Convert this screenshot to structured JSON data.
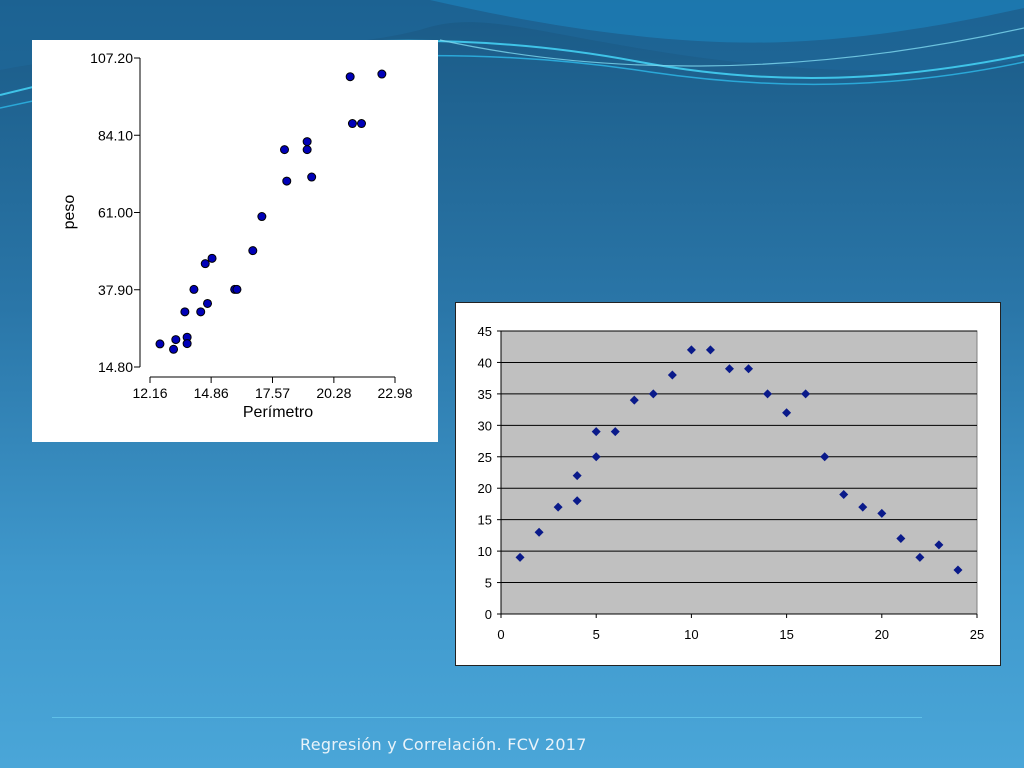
{
  "footer": {
    "text": "Regresión y Correlación. FCV 2017"
  },
  "colors": {
    "marker": "#0000b8",
    "marker2": "#0a1a8a",
    "plot_bg": "#c0c0c0"
  },
  "chart_data": [
    {
      "type": "scatter",
      "title": "",
      "xlabel": "Perímetro",
      "ylabel": "peso",
      "xlim": [
        12.16,
        22.98
      ],
      "ylim": [
        14.8,
        107.2
      ],
      "xticks": [
        "12.16",
        "14.86",
        "17.57",
        "20.28",
        "22.98"
      ],
      "yticks": [
        "14.80",
        "37.90",
        "61.00",
        "84.10",
        "107.20"
      ],
      "grid": false,
      "points": [
        {
          "x": 12.6,
          "y": 21.7
        },
        {
          "x": 13.2,
          "y": 20.1
        },
        {
          "x": 13.3,
          "y": 23.0
        },
        {
          "x": 13.7,
          "y": 31.3
        },
        {
          "x": 13.8,
          "y": 23.7
        },
        {
          "x": 13.8,
          "y": 21.8
        },
        {
          "x": 14.1,
          "y": 38.0
        },
        {
          "x": 14.4,
          "y": 31.3
        },
        {
          "x": 14.6,
          "y": 45.7
        },
        {
          "x": 14.7,
          "y": 33.8
        },
        {
          "x": 14.9,
          "y": 47.3
        },
        {
          "x": 15.9,
          "y": 38.0
        },
        {
          "x": 16.0,
          "y": 38.0
        },
        {
          "x": 16.7,
          "y": 49.6
        },
        {
          "x": 17.1,
          "y": 59.8
        },
        {
          "x": 18.1,
          "y": 79.8
        },
        {
          "x": 18.2,
          "y": 70.4
        },
        {
          "x": 19.1,
          "y": 82.2
        },
        {
          "x": 19.1,
          "y": 79.8
        },
        {
          "x": 19.3,
          "y": 71.6
        },
        {
          "x": 21.0,
          "y": 101.6
        },
        {
          "x": 21.1,
          "y": 87.6
        },
        {
          "x": 21.5,
          "y": 87.6
        },
        {
          "x": 22.4,
          "y": 102.4
        }
      ]
    },
    {
      "type": "scatter",
      "title": "",
      "xlabel": "",
      "ylabel": "",
      "xlim": [
        0,
        25
      ],
      "ylim": [
        0,
        45
      ],
      "xticks": [
        0,
        5,
        10,
        15,
        20,
        25
      ],
      "yticks": [
        0,
        5,
        10,
        15,
        20,
        25,
        30,
        35,
        40,
        45
      ],
      "grid": true,
      "marker": "diamond",
      "points": [
        {
          "x": 1,
          "y": 9
        },
        {
          "x": 2,
          "y": 13
        },
        {
          "x": 3,
          "y": 17
        },
        {
          "x": 4,
          "y": 22
        },
        {
          "x": 4,
          "y": 18
        },
        {
          "x": 5,
          "y": 29
        },
        {
          "x": 5,
          "y": 25
        },
        {
          "x": 6,
          "y": 29
        },
        {
          "x": 7,
          "y": 34
        },
        {
          "x": 8,
          "y": 35
        },
        {
          "x": 9,
          "y": 38
        },
        {
          "x": 10,
          "y": 42
        },
        {
          "x": 11,
          "y": 42
        },
        {
          "x": 12,
          "y": 39
        },
        {
          "x": 13,
          "y": 39
        },
        {
          "x": 14,
          "y": 35
        },
        {
          "x": 15,
          "y": 32
        },
        {
          "x": 16,
          "y": 35
        },
        {
          "x": 17,
          "y": 25
        },
        {
          "x": 18,
          "y": 19
        },
        {
          "x": 19,
          "y": 17
        },
        {
          "x": 20,
          "y": 16
        },
        {
          "x": 21,
          "y": 12
        },
        {
          "x": 22,
          "y": 9
        },
        {
          "x": 23,
          "y": 11
        },
        {
          "x": 24,
          "y": 7
        }
      ]
    }
  ]
}
